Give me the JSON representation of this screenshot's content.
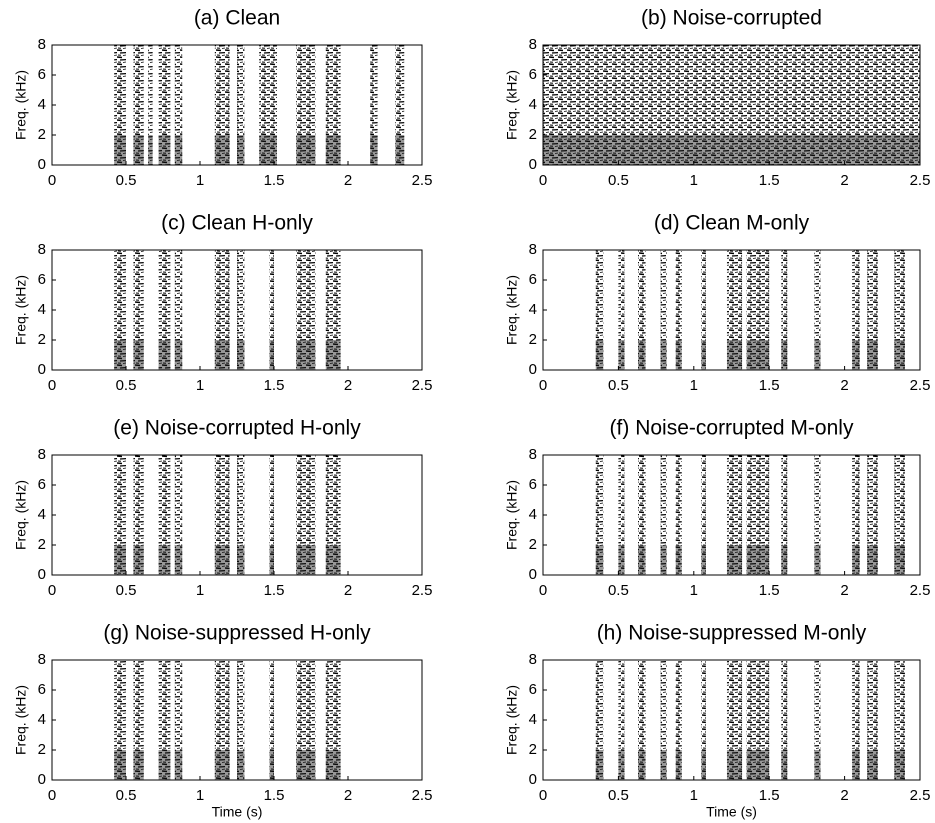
{
  "chart_data": [
    {
      "type": "spectrogram",
      "title": "(a) Clean",
      "ylabel": "Freq. (kHz)",
      "xlim": [
        0,
        2.5
      ],
      "xticks": [
        0,
        0.5,
        1,
        1.5,
        2,
        2.5
      ],
      "ylim": [
        0,
        8
      ],
      "yticks": [
        0,
        2,
        4,
        6,
        8
      ],
      "color": "#1a1a1a",
      "segments": [
        [
          0.42,
          0.5
        ],
        [
          0.55,
          0.62
        ],
        [
          0.65,
          0.68
        ],
        [
          0.72,
          0.8
        ],
        [
          0.83,
          0.88
        ],
        [
          1.1,
          1.2
        ],
        [
          1.25,
          1.3
        ],
        [
          1.4,
          1.52
        ],
        [
          1.65,
          1.78
        ],
        [
          1.85,
          1.95
        ],
        [
          2.15,
          2.2
        ],
        [
          2.32,
          2.38
        ]
      ]
    },
    {
      "type": "spectrogram",
      "title": "(b) Noise-corrupted",
      "ylabel": "Freq. (kHz)",
      "xlim": [
        0,
        2.5
      ],
      "xticks": [
        0,
        0.5,
        1,
        1.5,
        2,
        2.5
      ],
      "ylim": [
        0,
        8
      ],
      "yticks": [
        0,
        2,
        4,
        6,
        8
      ],
      "color": "#1a1a1a",
      "segments": [
        [
          0,
          2.5
        ]
      ]
    },
    {
      "type": "spectrogram",
      "title": "(c) Clean H-only",
      "ylabel": "Freq. (kHz)",
      "xlim": [
        0,
        2.5
      ],
      "xticks": [
        0,
        0.5,
        1,
        1.5,
        2,
        2.5
      ],
      "ylim": [
        0,
        8
      ],
      "yticks": [
        0,
        2,
        4,
        6,
        8
      ],
      "color": "#1a1a1a",
      "segments": [
        [
          0.42,
          0.5
        ],
        [
          0.55,
          0.62
        ],
        [
          0.72,
          0.8
        ],
        [
          0.83,
          0.88
        ],
        [
          1.1,
          1.2
        ],
        [
          1.25,
          1.3
        ],
        [
          1.47,
          1.5
        ],
        [
          1.65,
          1.78
        ],
        [
          1.85,
          1.95
        ]
      ]
    },
    {
      "type": "spectrogram",
      "title": "(d) Clean M-only",
      "ylabel": "Freq. (kHz)",
      "xlim": [
        0,
        2.5
      ],
      "xticks": [
        0,
        0.5,
        1,
        1.5,
        2,
        2.5
      ],
      "ylim": [
        0,
        8
      ],
      "yticks": [
        0,
        2,
        4,
        6,
        8
      ],
      "color": "#1a1a1a",
      "segments": [
        [
          0.35,
          0.4
        ],
        [
          0.5,
          0.54
        ],
        [
          0.63,
          0.68
        ],
        [
          0.78,
          0.82
        ],
        [
          0.88,
          0.92
        ],
        [
          1.05,
          1.08
        ],
        [
          1.22,
          1.32
        ],
        [
          1.35,
          1.5
        ],
        [
          1.58,
          1.62
        ],
        [
          1.8,
          1.84
        ],
        [
          2.05,
          2.1
        ],
        [
          2.15,
          2.22
        ],
        [
          2.33,
          2.4
        ]
      ]
    },
    {
      "type": "spectrogram",
      "title": "(e) Noise-corrupted H-only",
      "ylabel": "Freq. (kHz)",
      "xlim": [
        0,
        2.5
      ],
      "xticks": [
        0,
        0.5,
        1,
        1.5,
        2,
        2.5
      ],
      "ylim": [
        0,
        8
      ],
      "yticks": [
        0,
        2,
        4,
        6,
        8
      ],
      "color": "#1a1a1a",
      "segments": [
        [
          0.42,
          0.5
        ],
        [
          0.55,
          0.62
        ],
        [
          0.72,
          0.8
        ],
        [
          0.83,
          0.88
        ],
        [
          1.1,
          1.2
        ],
        [
          1.25,
          1.3
        ],
        [
          1.47,
          1.5
        ],
        [
          1.65,
          1.78
        ],
        [
          1.85,
          1.95
        ]
      ]
    },
    {
      "type": "spectrogram",
      "title": "(f) Noise-corrupted M-only",
      "ylabel": "Freq. (kHz)",
      "xlim": [
        0,
        2.5
      ],
      "xticks": [
        0,
        0.5,
        1,
        1.5,
        2,
        2.5
      ],
      "ylim": [
        0,
        8
      ],
      "yticks": [
        0,
        2,
        4,
        6,
        8
      ],
      "color": "#1a1a1a",
      "segments": [
        [
          0.35,
          0.4
        ],
        [
          0.5,
          0.54
        ],
        [
          0.63,
          0.68
        ],
        [
          0.78,
          0.82
        ],
        [
          0.88,
          0.92
        ],
        [
          1.05,
          1.08
        ],
        [
          1.22,
          1.32
        ],
        [
          1.35,
          1.5
        ],
        [
          1.58,
          1.62
        ],
        [
          1.8,
          1.84
        ],
        [
          2.05,
          2.1
        ],
        [
          2.15,
          2.22
        ],
        [
          2.33,
          2.4
        ]
      ]
    },
    {
      "type": "spectrogram",
      "title": "(g) Noise-suppressed H-only",
      "xlabel": "Time (s)",
      "ylabel": "Freq. (kHz)",
      "xlim": [
        0,
        2.5
      ],
      "xticks": [
        0,
        0.5,
        1,
        1.5,
        2,
        2.5
      ],
      "ylim": [
        0,
        8
      ],
      "yticks": [
        0,
        2,
        4,
        6,
        8
      ],
      "color": "#1a1a1a",
      "segments": [
        [
          0.42,
          0.5
        ],
        [
          0.55,
          0.62
        ],
        [
          0.72,
          0.8
        ],
        [
          0.83,
          0.88
        ],
        [
          1.1,
          1.2
        ],
        [
          1.25,
          1.3
        ],
        [
          1.47,
          1.5
        ],
        [
          1.65,
          1.78
        ],
        [
          1.85,
          1.95
        ]
      ]
    },
    {
      "type": "spectrogram",
      "title": "(h) Noise-suppressed M-only",
      "xlabel": "Time (s)",
      "ylabel": "Freq. (kHz)",
      "xlim": [
        0,
        2.5
      ],
      "xticks": [
        0,
        0.5,
        1,
        1.5,
        2,
        2.5
      ],
      "ylim": [
        0,
        8
      ],
      "yticks": [
        0,
        2,
        4,
        6,
        8
      ],
      "color": "#1a1a1a",
      "segments": [
        [
          0.35,
          0.4
        ],
        [
          0.5,
          0.54
        ],
        [
          0.63,
          0.68
        ],
        [
          0.78,
          0.82
        ],
        [
          0.88,
          0.92
        ],
        [
          1.05,
          1.08
        ],
        [
          1.22,
          1.32
        ],
        [
          1.35,
          1.5
        ],
        [
          1.58,
          1.62
        ],
        [
          1.8,
          1.84
        ],
        [
          2.05,
          2.1
        ],
        [
          2.15,
          2.22
        ],
        [
          2.33,
          2.4
        ]
      ]
    }
  ]
}
